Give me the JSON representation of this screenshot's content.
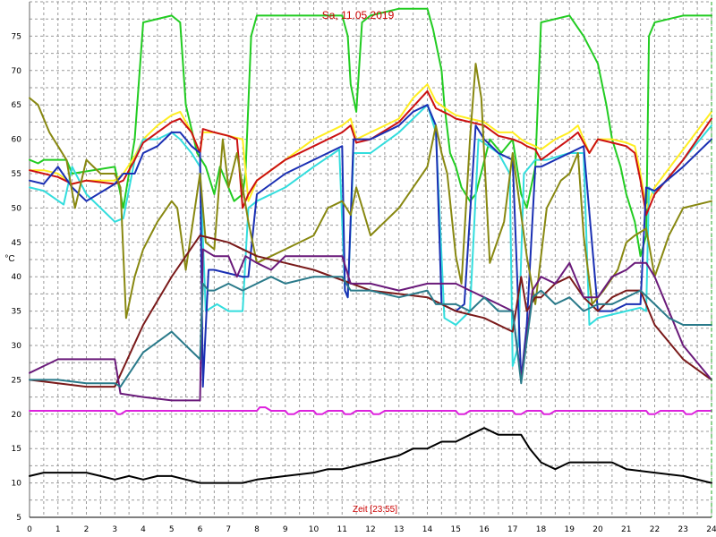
{
  "chart_data": {
    "type": "line",
    "title": "Sa, 11.05.2019",
    "xlabel": "Zeit [23:55]",
    "ylabel": "°C",
    "xlim": [
      0,
      24
    ],
    "ylim": [
      5,
      80
    ],
    "xticks": [
      0,
      1,
      2,
      3,
      4,
      5,
      6,
      7,
      8,
      9,
      10,
      11,
      12,
      13,
      14,
      15,
      16,
      17,
      18,
      19,
      20,
      21,
      22,
      23,
      24
    ],
    "yticks": [
      5,
      10,
      15,
      20,
      25,
      30,
      35,
      40,
      45,
      50,
      55,
      60,
      65,
      70,
      75
    ],
    "grid": true,
    "legend": "none",
    "series": [
      {
        "color": "#22cc22",
        "x": [
          0,
          0.3,
          0.5,
          1.3,
          1.5,
          3,
          3.3,
          3.5,
          3.7,
          4,
          5,
          5.3,
          5.5,
          5.9,
          6.2,
          6.5,
          6.7,
          7.2,
          7.5,
          7.6,
          7.8,
          8,
          10,
          11,
          11.2,
          11.3,
          11.5,
          11.7,
          12,
          13,
          13.5,
          14,
          14.2,
          14.5,
          14.6,
          14.8,
          15,
          15.2,
          15.5,
          15.7,
          16.2,
          16.6,
          17,
          17.3,
          17.5,
          17.8,
          18,
          19,
          19.5,
          20,
          20.3,
          20.5,
          20.8,
          21,
          21.3,
          21.5,
          21.7,
          21.8,
          22,
          22.5,
          23,
          24
        ],
        "y": [
          57,
          56.5,
          57,
          57,
          55,
          56,
          50,
          55,
          60,
          77,
          78,
          77,
          65,
          58,
          56,
          52,
          56,
          51,
          52,
          55,
          75,
          78,
          78,
          78,
          75,
          68,
          64,
          77,
          78,
          79,
          79,
          79,
          76,
          70,
          65,
          58,
          56,
          53,
          51,
          52,
          60,
          58,
          60,
          52,
          50,
          56,
          77,
          78,
          75,
          71,
          65,
          60,
          56,
          52,
          48,
          43,
          46,
          75,
          77,
          77.5,
          78,
          78
        ]
      },
      {
        "color": "#ffee22",
        "x": [
          0,
          0.5,
          1,
          1.5,
          2,
          3,
          3.3,
          3.7,
          4,
          4.5,
          5,
          5.3,
          5.7,
          6,
          6.1,
          6.5,
          7,
          7.5,
          7.7,
          8,
          9,
          10,
          11,
          11.3,
          11.5,
          12,
          13,
          13.5,
          14,
          14.3,
          14.8,
          15,
          15.5,
          16,
          16.5,
          17,
          17.3,
          17.5,
          17.8,
          18,
          18.5,
          19,
          19.3,
          19.7,
          20,
          20.5,
          21,
          21.3,
          21.5,
          21.7,
          22,
          23,
          24
        ],
        "y": [
          55.5,
          55.5,
          55,
          53.5,
          54,
          54,
          55,
          57.5,
          60,
          62,
          63.5,
          64,
          61,
          58,
          61,
          61,
          60.5,
          60,
          51,
          54,
          57,
          60,
          62,
          63,
          60,
          61,
          63,
          66,
          68,
          65.5,
          64,
          63.5,
          63,
          62.5,
          61,
          61,
          60,
          59.5,
          59,
          58.5,
          60,
          61,
          62,
          58,
          60,
          60,
          59.5,
          59,
          55,
          50,
          53,
          58.5,
          64
        ]
      },
      {
        "color": "#33dddd",
        "x": [
          0,
          0.5,
          1.2,
          1.5,
          2,
          3,
          3.3,
          3.7,
          4,
          4.5,
          5,
          5.3,
          5.7,
          6,
          6.2,
          6.6,
          7,
          7.5,
          7.7,
          8,
          9,
          10,
          10.9,
          11.1,
          11.2,
          11.4,
          12,
          13,
          14,
          14.3,
          14.6,
          15,
          15.5,
          15.8,
          16.5,
          16.9,
          17,
          17.2,
          17.4,
          17.8,
          18.2,
          19,
          19.5,
          19.7,
          20,
          20.5,
          21,
          21.5,
          21.7,
          21.8,
          22,
          23,
          24
        ],
        "y": [
          53,
          52.5,
          50.5,
          56,
          52,
          48,
          48.5,
          57,
          60,
          60,
          61,
          60,
          58,
          56,
          35,
          36,
          35,
          35,
          50,
          51,
          53,
          56,
          58.5,
          38,
          37,
          58,
          58,
          61,
          65,
          61,
          34,
          33,
          35,
          60,
          58,
          55,
          27,
          30,
          55,
          57,
          57,
          58,
          58,
          33,
          34,
          34.5,
          35,
          35.5,
          35,
          53,
          52,
          57,
          62
        ]
      },
      {
        "color": "#cc1111",
        "x": [
          0,
          0.5,
          1,
          1.5,
          2,
          3,
          3.3,
          3.7,
          4,
          4.5,
          5,
          5.3,
          5.7,
          6,
          6.1,
          6.5,
          7,
          7.3,
          7.5,
          7.7,
          8,
          9,
          10,
          11,
          11.3,
          11.5,
          12,
          13,
          14,
          14.3,
          14.8,
          15,
          15.5,
          16,
          16.5,
          17,
          17.3,
          17.5,
          17.8,
          18,
          18.5,
          19,
          19.3,
          19.7,
          20,
          20.5,
          21,
          21.3,
          21.5,
          21.7,
          22,
          23,
          24
        ],
        "y": [
          55.5,
          55,
          54.5,
          53.5,
          54,
          53.5,
          54,
          57,
          59.5,
          61,
          62.5,
          63,
          61,
          58,
          61.5,
          61,
          60.5,
          60,
          50,
          52,
          54,
          57,
          59,
          61,
          62,
          59.5,
          60,
          62.5,
          67,
          64.5,
          63.5,
          63,
          62.5,
          62,
          60.5,
          60,
          59.5,
          59,
          58.5,
          57,
          58.5,
          60,
          61,
          58,
          60,
          59.5,
          59,
          58,
          54,
          49,
          52,
          57,
          63
        ]
      },
      {
        "color": "#1a2fb3",
        "x": [
          0,
          0.5,
          1,
          1.5,
          2,
          3,
          3.3,
          3.7,
          4,
          4.5,
          5,
          5.3,
          5.7,
          6,
          6.1,
          6.3,
          6.5,
          7,
          7.5,
          7.7,
          8,
          9,
          10,
          11,
          11.1,
          11.2,
          11.4,
          12,
          13,
          13.5,
          14,
          14.3,
          14.5,
          15,
          15.3,
          15.7,
          16,
          16.5,
          17,
          17.3,
          17.5,
          17.8,
          18,
          18.5,
          19,
          19.5,
          20,
          20.5,
          21,
          21.5,
          21.7,
          22,
          23,
          24
        ],
        "y": [
          54,
          53.5,
          56,
          53,
          51,
          53.5,
          55,
          55,
          58,
          59,
          61,
          61,
          59,
          58,
          24,
          41,
          41,
          40.5,
          40,
          40,
          52,
          55,
          57,
          59,
          38,
          37,
          60,
          60,
          62,
          64,
          65,
          62,
          36,
          35,
          36,
          62,
          60,
          58,
          57,
          25,
          33,
          56,
          56,
          57,
          58,
          59,
          35,
          35,
          36,
          36,
          53,
          52.5,
          56,
          60
        ]
      },
      {
        "color": "#888811",
        "x": [
          0,
          0.3,
          0.7,
          1,
          1.3,
          1.6,
          2,
          2.5,
          3,
          3.2,
          3.4,
          3.7,
          4,
          4.5,
          5,
          5.2,
          5.5,
          6,
          6.2,
          6.5,
          6.8,
          7,
          7.3,
          7.7,
          8,
          9,
          10,
          10.5,
          11,
          11.3,
          11.5,
          12,
          13,
          14,
          14.3,
          14.5,
          14.7,
          15,
          15.2,
          15.5,
          15.7,
          15.9,
          16.2,
          16.7,
          17,
          17.3,
          17.5,
          17.8,
          18.2,
          18.7,
          19,
          19.3,
          19.5,
          19.8,
          20.2,
          20.7,
          21,
          21.3,
          21.7,
          22,
          22.5,
          23,
          24
        ],
        "y": [
          66,
          65,
          61,
          59,
          57,
          50,
          57,
          55,
          55,
          53,
          34,
          40,
          44,
          48,
          51,
          50,
          41,
          55,
          45,
          44,
          60,
          53,
          58,
          48,
          42,
          44,
          46,
          50,
          51,
          49,
          53,
          46,
          50,
          56,
          62,
          58,
          55,
          43,
          39,
          60,
          71,
          66,
          42,
          48,
          58,
          49,
          43,
          36,
          50,
          54,
          55,
          58,
          46,
          36,
          38,
          41,
          45,
          46,
          47,
          40,
          46,
          50,
          51
        ]
      },
      {
        "color": "#7a1a1a",
        "x": [
          0,
          1,
          2,
          3,
          4,
          5,
          6,
          7,
          8,
          9,
          10,
          11,
          12,
          13,
          14,
          15,
          16,
          17,
          17.3,
          17.5,
          17.8,
          18,
          18.5,
          19,
          19.5,
          20,
          20.5,
          21,
          21.5,
          22,
          23,
          24
        ],
        "y": [
          25,
          24.5,
          24,
          24,
          33,
          40,
          46,
          45,
          43,
          42,
          41,
          39.5,
          38,
          37.5,
          37,
          35,
          34,
          32,
          40,
          35,
          37,
          37,
          39,
          40,
          37,
          35,
          37,
          38,
          38,
          33,
          28,
          25
        ]
      },
      {
        "color": "#6a1a7a",
        "x": [
          0,
          0.5,
          1,
          2,
          3,
          3.2,
          4,
          5,
          6,
          6.1,
          6.5,
          7,
          7.3,
          7.6,
          8,
          8.5,
          9,
          10,
          11,
          11.3,
          12,
          13,
          14,
          14.3,
          15,
          15.5,
          16,
          16.5,
          17,
          17.3,
          17.7,
          18,
          18.5,
          19,
          19.5,
          20,
          20.5,
          21,
          21.3,
          21.7,
          22,
          23,
          24
        ],
        "y": [
          26,
          27,
          28,
          28,
          28,
          23,
          22.5,
          22,
          22,
          44,
          43,
          43,
          40,
          43,
          42,
          41,
          43,
          43,
          43,
          39,
          39,
          38,
          39,
          39,
          39,
          38,
          37,
          36,
          35,
          25,
          38,
          40,
          39,
          42,
          37,
          37,
          40,
          41,
          42,
          42,
          40,
          30,
          25
        ]
      },
      {
        "color": "#2a7a8a",
        "x": [
          0,
          1,
          2,
          3,
          3.2,
          4,
          5,
          5.5,
          6,
          6.1,
          6.3,
          6.5,
          7,
          7.5,
          8,
          8.5,
          9,
          10,
          11,
          11.3,
          12,
          13,
          14,
          14.3,
          15,
          15.5,
          16,
          16.5,
          17,
          17.3,
          17.7,
          18,
          18.5,
          19,
          19.5,
          20,
          20.5,
          21,
          21.5,
          22,
          22.5,
          23,
          24
        ],
        "y": [
          25,
          25,
          24.5,
          24.5,
          24,
          29,
          32,
          30,
          28,
          39,
          38,
          38,
          39,
          38,
          39,
          40,
          39,
          40,
          40,
          38,
          38,
          37,
          38,
          36,
          36,
          35,
          37,
          35,
          35,
          24.5,
          37,
          38,
          36,
          37,
          35,
          36,
          36,
          37,
          38,
          36,
          34,
          33,
          33
        ]
      },
      {
        "color": "#dd22dd",
        "x": [
          0,
          3,
          3.1,
          3.2,
          3.4,
          3.5,
          8,
          8.1,
          8.3,
          8.5,
          9,
          9.1,
          9.3,
          9.5,
          10,
          10.1,
          10.3,
          10.5,
          11,
          11.1,
          11.3,
          11.5,
          12,
          12.1,
          12.3,
          12.5,
          12.9,
          13,
          15,
          15.1,
          15.3,
          15.5,
          17,
          17.1,
          17.3,
          17.5,
          18,
          18.1,
          18.3,
          18.5,
          21.7,
          21.8,
          22,
          22.2,
          23,
          23.1,
          23.3,
          23.5,
          24
        ],
        "y": [
          20.5,
          20.5,
          20,
          20,
          20.5,
          20.5,
          20.5,
          21,
          21,
          20.5,
          20.5,
          20,
          20,
          20.5,
          20.5,
          20,
          20,
          20.5,
          20.5,
          20,
          20,
          20.5,
          20.5,
          20,
          20,
          20.5,
          20.5,
          20.5,
          20.5,
          20,
          20,
          20.5,
          20.5,
          20,
          20,
          20.5,
          20.5,
          20,
          20,
          20.5,
          20.5,
          20,
          20,
          20.5,
          20.5,
          20,
          20,
          20.5,
          20.5
        ]
      },
      {
        "color": "#000000",
        "x": [
          0,
          0.5,
          1,
          1.5,
          2,
          2.5,
          3,
          3.5,
          4,
          4.5,
          5,
          5.5,
          6,
          6.5,
          7,
          7.5,
          8,
          9,
          10,
          10.5,
          11,
          12,
          13,
          13.5,
          14,
          14.5,
          15,
          15.5,
          16,
          16.5,
          17,
          17.3,
          17.6,
          18,
          18.5,
          19,
          19.5,
          20,
          20.5,
          21,
          22,
          23,
          24
        ],
        "y": [
          11,
          11.5,
          11.5,
          11.5,
          11.5,
          11,
          10.5,
          11,
          10.5,
          11,
          11,
          10.5,
          10,
          10,
          10,
          10,
          10.5,
          11,
          11.5,
          12,
          12,
          13,
          14,
          15,
          15,
          16,
          16,
          17,
          18,
          17,
          17,
          17,
          15,
          13,
          12,
          13,
          13,
          13,
          13,
          12,
          11.5,
          11,
          10
        ]
      }
    ]
  }
}
